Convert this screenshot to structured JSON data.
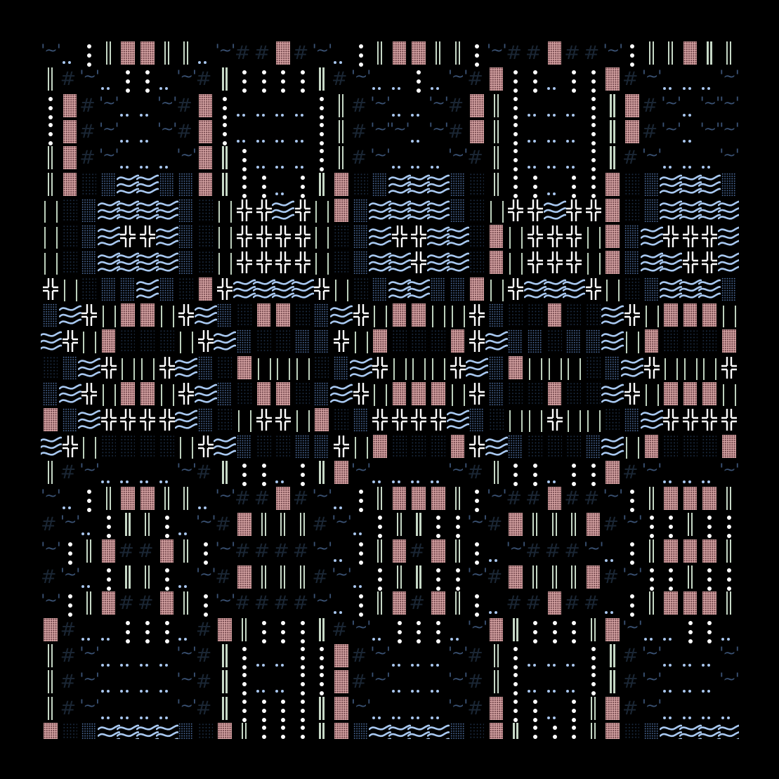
{
  "pattern": {
    "legend": {
      "P": {
        "glyph": "▓",
        "name": "pink-shade-block",
        "color": "#d8a6a6"
      },
      "D": {
        "glyph": "║",
        "name": "double-vertical-bar",
        "color": "#c6d8c6"
      },
      "L": {
        "glyph": "| |",
        "name": "thin-pipe-pair",
        "color": "#bcd0bc"
      },
      "V": {
        "glyph": "⋮",
        "name": "vertical-dots",
        "color": "#ffffff"
      },
      "v": {
        "glyph": "..",
        "name": "low-dots",
        "color": "#a8c6ee"
      },
      "H": {
        "glyph": "#",
        "name": "hash",
        "color": "#1a2634"
      },
      "T": {
        "glyph": "'~'",
        "name": "quoted-tilde",
        "color": "#3a5274"
      },
      "W": {
        "glyph": "≈",
        "name": "wave",
        "color": "#a8c8f0"
      },
      "X": {
        "glyph": "╬",
        "name": "double-cross",
        "color": "#ffffff"
      },
      "B": {
        "glyph": "▒",
        "name": "blue-dot-shade",
        "color": "#4c6c9c"
      },
      "b": {
        "glyph": "░",
        "name": "dark-dot-shade",
        "color": "#1b2c42"
      }
    },
    "rows": [
      "TvVDPPDDvTHHPHTvVDPPDDVTHHPHHTVDDPDD",
      "DHTvVVvTHDVVVVDHTvvVvTHPVVvVVPHTvvvT",
      "VPHTvvTHPVvvvvVDHTvvTHPDVvvvVDPHTvTT",
      "VPHTvvTHPVvvvvVDHTTvTHPDVvvvVDPHTvTT",
      "DPHTvvvTPDVvvvVDHTvvvTHDVvvvVDHTvvvT",
      "DPbBWWBBPDVVvVDPbBWWWBbDVVvVVPbBWWWB",
      "LbBWWWWBbLXXWXLPBWWWWBbLXXWXXPbBWWWW",
      "LbBWXXWBbLXXXXLbBWXXWWbPLXXXLPBWXXXW",
      "LbBWWWWBbLXXXXLbBWWXWWbPLXXXLPBWWXXW",
      "XLbBBWBbPXWWWWXLbBWWBBPLXWWWXLbBWWWB",
      "BWXLPPLXWBbPPbBWXLPPLLXBbbPbbWXLPPPL",
      "WXLPbbbLXWBbbBBXLPbbbPXWBBbBBWLPbbbP",
      "bBWXLLXWBbPLLLbBWXLLLXWBPLLLbBWXLLLX",
      "BWXLPPLXWBbPPbBWXLPPPLXBbbPbbWXLPPPL",
      "PBWXXXXWBbLXXLPbBXXXXWBbLLXLLbBWXXXX",
      "WXLbbbbLXWBbbBBXLPbbbPXWBbbbBWLPbbbP",
      "DHTvvvvTHDVVvVDPTvvvvTHDVVvVVPHTvvvT",
      "TvVDPPDDvTHHPHTvVDPPPDVTHHPHHTVDPPPD",
      "HTvVDDVvTHPDDDHTvVDDVVTHPDDDPHTVVDVV",
      "TVDPHHPDVTHHHHTvVDPHPDVvTHHHTvVDPPPD",
      "HTvVDDVvTHPDDDHTvVDDVVTHPDDDPHTVVDVV",
      "TVDPHHPDVTHHHHTvVDPHPDVvHHPHHvVDPPPD",
      "PHvvVVVvHPDVVVDHTvVVVvTPDVVVDPTvvVVv",
      "DHTvvvvTHDVvvVVPHTvvvTHDVvvvVDHTvvvT",
      "DHTvvvvTHDVvvVVPHTvvvTHDVvvvVDHTvvvT",
      "DHTvvvvTHDVVVVDPTvvvvTHPVVvVDPHTvvvv",
      "PbBWWWWBbPDVVVDPBWWWWBbPDVVVDPbBWWWW"
    ]
  }
}
